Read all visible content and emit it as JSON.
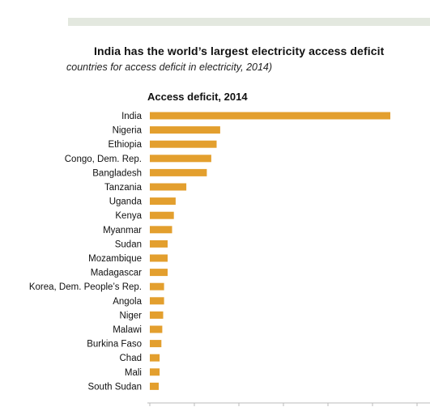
{
  "header": {
    "title": "India has the world’s largest electricity access deficit",
    "subtitle": "countries for access deficit in electricity, 2014)"
  },
  "colors": {
    "bar": "#E39F2E",
    "band": "#E3E8DF",
    "axis": "#BBBBBB"
  },
  "chart_data": {
    "type": "bar",
    "orientation": "horizontal",
    "title": "Access deficit, 2014",
    "xlabel": "",
    "ylabel": "",
    "grid": false,
    "categories": [
      "India",
      "Nigeria",
      "Ethiopia",
      "Congo, Dem. Rep.",
      "Bangladesh",
      "Tanzania",
      "Uganda",
      "Kenya",
      "Myanmar",
      "Sudan",
      "Mozambique",
      "Madagascar",
      "Korea, Dem. People’s Rep.",
      "Angola",
      "Niger",
      "Malawi",
      "Burkina Faso",
      "Chad",
      "Mali",
      "South Sudan"
    ],
    "values": [
      270,
      79,
      75,
      69,
      64,
      41,
      29,
      27,
      25,
      20,
      20,
      20,
      16,
      16,
      15,
      14,
      13,
      11,
      11,
      10
    ],
    "xlim": [
      0,
      300
    ]
  }
}
